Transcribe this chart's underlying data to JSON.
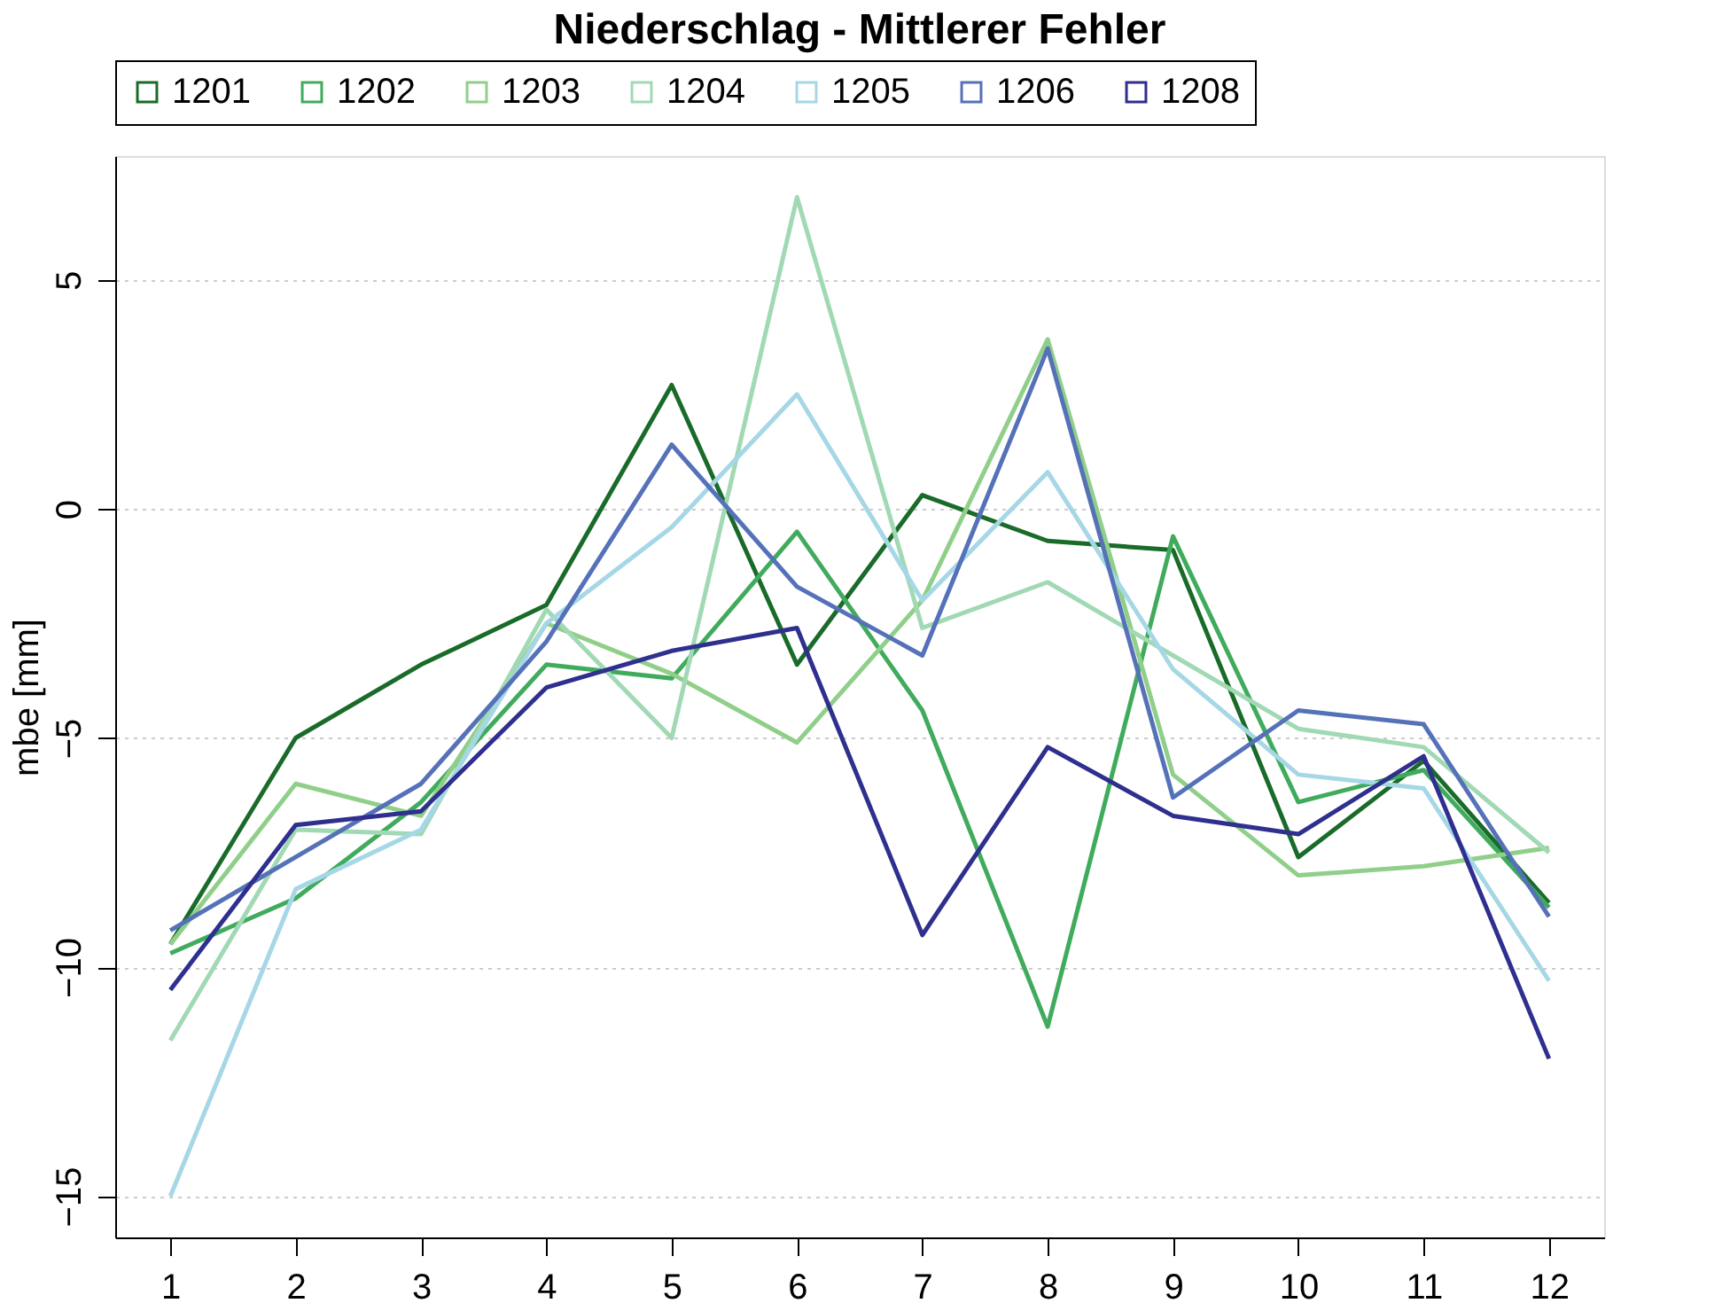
{
  "chart_data": {
    "type": "line",
    "title": "Niederschlag - Mittlerer Fehler",
    "ylabel": "mbe [mm]",
    "x": [
      1,
      2,
      3,
      4,
      5,
      6,
      7,
      8,
      9,
      10,
      11,
      12
    ],
    "xlim": [
      0.56,
      12.44
    ],
    "xticks": [
      1,
      2,
      3,
      4,
      5,
      6,
      7,
      8,
      9,
      10,
      11,
      12
    ],
    "ylim": [
      -15.9,
      7.7
    ],
    "yticks": [
      -15,
      -10,
      -5,
      0,
      5
    ],
    "grid": "y",
    "legend": "top",
    "marker": "none",
    "line_style": "solid",
    "series": [
      {
        "name": "1201",
        "color": "#1a6b2a",
        "values": [
          -9.5,
          -5.0,
          -3.4,
          -2.1,
          2.7,
          -3.4,
          0.3,
          -0.7,
          -0.9,
          -7.6,
          -5.5,
          -8.6
        ]
      },
      {
        "name": "1202",
        "color": "#41ab5d",
        "values": [
          -9.7,
          -8.5,
          -6.4,
          -3.4,
          -3.7,
          -0.5,
          -4.4,
          -11.3,
          -0.6,
          -6.4,
          -5.7,
          -8.7
        ]
      },
      {
        "name": "1203",
        "color": "#90cf8a",
        "values": [
          -9.5,
          -6.0,
          -6.7,
          -2.5,
          -3.6,
          -5.1,
          -2.0,
          3.7,
          -5.8,
          -8.0,
          -7.8,
          -7.4
        ]
      },
      {
        "name": "1204",
        "color": "#a1d9b4",
        "values": [
          -11.6,
          -7.0,
          -7.1,
          -2.2,
          -5.0,
          6.8,
          -2.6,
          -1.6,
          -3.2,
          -4.8,
          -5.2,
          -7.5
        ]
      },
      {
        "name": "1205",
        "color": "#a6d7e6",
        "values": [
          -15.0,
          -8.3,
          -7.0,
          -2.5,
          -0.4,
          2.5,
          -2.0,
          0.8,
          -3.5,
          -5.8,
          -6.1,
          -10.3
        ]
      },
      {
        "name": "1206",
        "color": "#5571b8",
        "values": [
          -9.2,
          -7.6,
          -6.0,
          -2.9,
          1.4,
          -1.7,
          -3.2,
          3.5,
          -6.3,
          -4.4,
          -4.7,
          -8.9
        ]
      },
      {
        "name": "1208",
        "color": "#2e2f8e",
        "values": [
          -10.5,
          -6.9,
          -6.6,
          -3.9,
          -3.1,
          -2.6,
          -9.3,
          -5.2,
          -6.7,
          -7.1,
          -5.4,
          -12.0
        ]
      }
    ]
  }
}
